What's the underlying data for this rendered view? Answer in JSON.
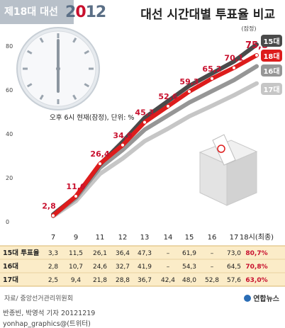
{
  "header": {
    "badge": "제18대 대선",
    "brand_pre": "2",
    "brand_o": "0",
    "brand_post": "12",
    "title": "대선 시간대별 투표율 비교"
  },
  "note": "오후 6시 현재(잠정), 단위: %",
  "provisional_label": "(잠정)",
  "source": "자료/ 중앙선거관리위원회",
  "credit": {
    "line1": "반종빈, 박영석 기자 20121219",
    "line2": "yonhap_graphics@(트위터)"
  },
  "agency": "연합뉴스",
  "colors": {
    "c15": "#4a4a4a",
    "c16": "#969696",
    "c17": "#c6c6c6",
    "c18": "#dd1c1c",
    "table_bg": "#fbecc8"
  },
  "chart_data": {
    "type": "line",
    "categories": [
      "7",
      "9",
      "11",
      "12",
      "13",
      "14",
      "15",
      "16",
      "17",
      "18시(최종)"
    ],
    "y_ticks": [
      "0",
      "20",
      "40",
      "60",
      "80"
    ],
    "ylim": [
      0,
      85
    ],
    "series": [
      {
        "name": "15대",
        "values": [
          3.3,
          11.5,
          26.1,
          36.4,
          47.3,
          null,
          61.9,
          null,
          73.0,
          80.7
        ]
      },
      {
        "name": "16대",
        "values": [
          2.8,
          10.7,
          24.6,
          32.7,
          41.9,
          null,
          54.3,
          null,
          64.5,
          70.8
        ]
      },
      {
        "name": "17대",
        "values": [
          2.5,
          9.4,
          21.8,
          28.8,
          36.7,
          42.4,
          48.0,
          52.8,
          57.6,
          63.0
        ]
      },
      {
        "name": "18대",
        "values": [
          2.8,
          11.6,
          26.4,
          34.9,
          45.3,
          52.6,
          59.3,
          65.2,
          70.1,
          75.8
        ]
      }
    ],
    "point_labels_18": [
      "2,8",
      "11,6",
      "26,4",
      "34,9",
      "45,3",
      "52,6",
      "59,3",
      "65,2",
      "70,1",
      "75,8"
    ],
    "legend": [
      "15대",
      "18대",
      "16대",
      "17대"
    ],
    "table": {
      "rows": [
        {
          "label": "15대 투표율",
          "cells": [
            "3,3",
            "11,5",
            "26,1",
            "36,4",
            "47,3",
            "–",
            "61,9",
            "–",
            "73,0",
            "80,7%"
          ]
        },
        {
          "label": "16대",
          "cells": [
            "2,8",
            "10,7",
            "24,6",
            "32,7",
            "41,9",
            "–",
            "54,3",
            "–",
            "64,5",
            "70,8%"
          ]
        },
        {
          "label": "17대",
          "cells": [
            "2,5",
            "9,4",
            "21,8",
            "28,8",
            "36,7",
            "42,4",
            "48,0",
            "52,8",
            "57,6",
            "63,0%"
          ]
        }
      ]
    }
  }
}
